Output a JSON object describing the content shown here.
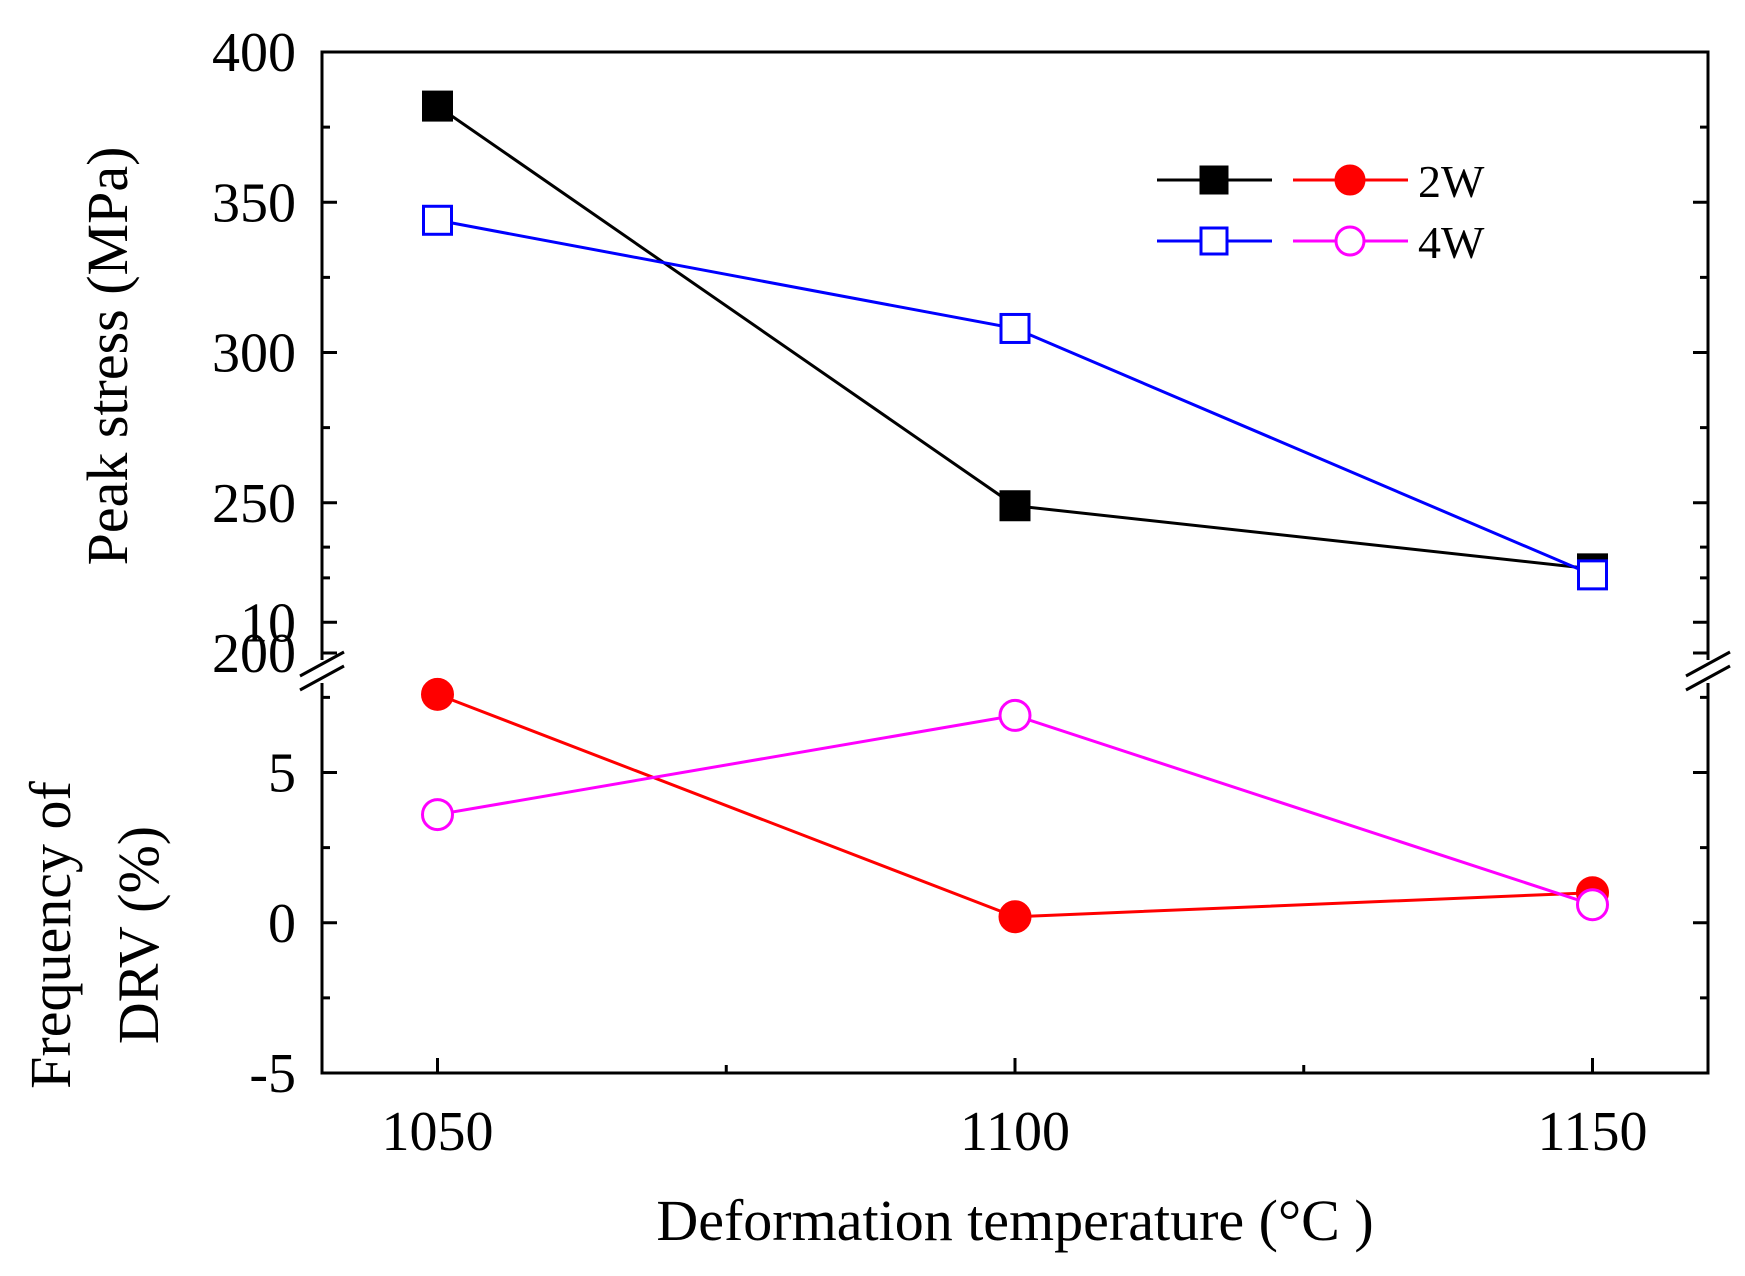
{
  "chart_data": {
    "type": "line",
    "xlabel": "Deformation temperature (°C )",
    "x": [
      1050,
      1100,
      1150
    ],
    "x_tick_labels": [
      "1050",
      "1100",
      "1150"
    ],
    "xlim": [
      1040,
      1160
    ],
    "panels": [
      {
        "id": "top",
        "ylabel": "Peak stress (MPa)",
        "ylim": [
          200,
          400
        ],
        "y_tick_labels": [
          "200",
          "250",
          "300",
          "350",
          "400"
        ],
        "y_ticks": [
          200,
          250,
          300,
          350,
          400
        ],
        "series": [
          {
            "legend": "",
            "color": "#000000",
            "marker": "square-filled",
            "values": [
              382,
              249,
              228
            ]
          },
          {
            "legend": "",
            "color": "#0000ff",
            "marker": "square-open",
            "values": [
              344,
              308,
              226
            ]
          }
        ]
      },
      {
        "id": "bottom",
        "ylabel_lines": [
          "Frequency of",
          "DRV (%)"
        ],
        "ylim": [
          -5,
          15
        ],
        "y_tick_labels": [
          "-5",
          "0",
          "5",
          "10"
        ],
        "y_ticks": [
          -5,
          0,
          5,
          10
        ],
        "series": [
          {
            "legend": "2W",
            "color": "#ff0000",
            "marker": "circle-filled",
            "values": [
              7.6,
              0.2,
              1.0
            ]
          },
          {
            "legend": "4W",
            "color": "#ff00ff",
            "marker": "circle-open",
            "values": [
              3.6,
              6.9,
              0.6
            ]
          }
        ]
      }
    ],
    "legend_position": "top-right",
    "grid": false
  }
}
